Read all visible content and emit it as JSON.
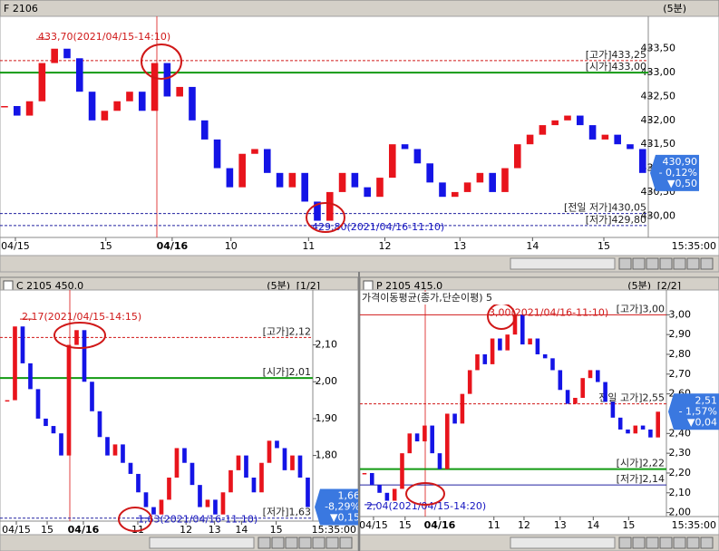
{
  "chart_data": [
    {
      "type": "candlestick",
      "title": "F 2106",
      "period": "(5분)",
      "end_label": "15:35:00",
      "up_color": "#e8141c",
      "down_color": "#1414e6",
      "values": [
        432.3,
        432.1,
        432.4,
        433.2,
        433.5,
        433.3,
        432.6,
        432.0,
        432.2,
        432.4,
        432.6,
        432.2,
        433.2,
        432.5,
        432.7,
        432.0,
        431.6,
        431.0,
        430.6,
        431.3,
        431.4,
        430.9,
        430.6,
        430.9,
        430.3,
        429.9,
        430.5,
        430.9,
        430.6,
        430.4,
        430.8,
        431.5,
        431.4,
        431.1,
        430.7,
        430.4,
        430.5,
        430.7,
        430.9,
        430.5,
        431.0,
        431.5,
        431.7,
        431.9,
        432.0,
        432.1,
        431.9,
        431.6,
        431.7,
        431.5,
        431.4,
        430.9
      ],
      "xlim": [
        -0.36,
        51.45
      ],
      "ylim": [
        429.55,
        434.14
      ],
      "xticks": [
        {
          "value": 0.87,
          "label": "04/15"
        },
        {
          "value": 8.1,
          "label": "15"
        },
        {
          "value": 13.4,
          "label": "04/16"
        },
        {
          "value": 18.1,
          "label": "10"
        },
        {
          "value": 24.3,
          "label": "11"
        },
        {
          "value": 30.4,
          "label": "12"
        },
        {
          "value": 36.4,
          "label": "13"
        },
        {
          "value": 42.2,
          "label": "14"
        },
        {
          "value": 47.9,
          "label": "15"
        }
      ],
      "yticks": [
        {
          "value": 433.5,
          "label": "433,50"
        },
        {
          "value": 433,
          "label": "433,00"
        },
        {
          "value": 432.5,
          "label": "432,50"
        },
        {
          "value": 432,
          "label": "432,00"
        },
        {
          "value": 431.5,
          "label": "431,50"
        },
        {
          "value": 431,
          "label": "431,00"
        },
        {
          "value": 430.5,
          "label": "430,50"
        },
        {
          "value": 430,
          "label": "430,00"
        }
      ],
      "levels": [
        {
          "label": "[고가]433,25",
          "value": 433.25,
          "color": "#d01818",
          "style": "dashed"
        },
        {
          "label": "[시가]433,00",
          "value": 433,
          "color": "#139a13",
          "style": "solid"
        },
        {
          "label": "[전일 저가]430,05",
          "value": 430.05,
          "color": "#2020a0",
          "style": "dashed"
        },
        {
          "label": "[저가]429,80",
          "value": 429.8,
          "color": "#2020a0",
          "style": "dashed"
        }
      ],
      "annotations": [
        {
          "text": "433,70(2021/04/15-14:10)",
          "value": 433.7,
          "color": "#d01818"
        },
        {
          "text": "429,80(2021/04/16-11:10)",
          "value": 429.8,
          "color": "#1414c0"
        }
      ],
      "last": {
        "value": 430.9,
        "label": "430,90",
        "change": "- 0,12%",
        "diff": "▼0,50"
      }
    },
    {
      "type": "candlestick",
      "title": "C 2105 450.0",
      "period": "(5분)",
      "page": "[1/2]",
      "end_label": "15:35:00",
      "up_color": "#e8141c",
      "down_color": "#1414e6",
      "values": [
        1.95,
        2.15,
        2.05,
        1.98,
        1.9,
        1.88,
        1.86,
        1.8,
        2.1,
        2.14,
        2.0,
        1.92,
        1.85,
        1.8,
        1.83,
        1.78,
        1.75,
        1.7,
        1.66,
        1.64,
        1.68,
        1.74,
        1.82,
        1.78,
        1.72,
        1.66,
        1.68,
        1.64,
        1.7,
        1.76,
        1.8,
        1.74,
        1.7,
        1.78,
        1.84,
        1.82,
        1.76,
        1.8,
        1.74,
        1.66
      ],
      "xlim": [
        -0.94,
        39.65
      ],
      "ylim": [
        1.622,
        2.244
      ],
      "xticks": [
        {
          "value": 1.18,
          "label": "04/15"
        },
        {
          "value": 5.18,
          "label": "15"
        },
        {
          "value": 9.88,
          "label": "04/16"
        },
        {
          "value": 16.94,
          "label": "11"
        },
        {
          "value": 23.2,
          "label": "12"
        },
        {
          "value": 26.9,
          "label": "13"
        },
        {
          "value": 30.4,
          "label": "14"
        },
        {
          "value": 34.9,
          "label": "15"
        }
      ],
      "yticks": [
        {
          "value": 2.1,
          "label": "2,10"
        },
        {
          "value": 2.0,
          "label": "2,00"
        },
        {
          "value": 1.9,
          "label": "1,90"
        },
        {
          "value": 1.8,
          "label": "1,80"
        }
      ],
      "levels": [
        {
          "label": "[고가]2,12",
          "value": 2.12,
          "color": "#d01818",
          "style": "dashed"
        },
        {
          "label": "[시가]2,01",
          "value": 2.01,
          "color": "#139a13",
          "style": "solid"
        },
        {
          "label": "[저가]1,63",
          "value": 1.63,
          "color": "#2020a0",
          "style": "dashed"
        }
      ],
      "annotations": [
        {
          "text": "2,17(2021/04/15-14:15)",
          "value": 2.17,
          "color": "#d01818"
        },
        {
          "text": "1,63(2021/04/16-11:10)",
          "value": 1.63,
          "color": "#1414c0"
        }
      ],
      "last": {
        "value": 1.66,
        "label": "1,66",
        "change": "-8,29%",
        "diff": "▼0,15"
      }
    },
    {
      "type": "candlestick",
      "title": "P 2105 415.0",
      "period": "(5분)",
      "page": "[2/2]",
      "subtitle": "가격이동평균(종가,단순이평) 5",
      "end_label": "15:35:00",
      "up_color": "#e8141c",
      "down_color": "#1414e6",
      "values": [
        2.2,
        2.14,
        2.1,
        2.06,
        2.12,
        2.3,
        2.4,
        2.36,
        2.44,
        2.3,
        2.22,
        2.5,
        2.45,
        2.6,
        2.72,
        2.8,
        2.75,
        2.88,
        2.82,
        2.9,
        3.0,
        2.85,
        2.88,
        2.8,
        2.78,
        2.72,
        2.62,
        2.55,
        2.58,
        2.68,
        2.72,
        2.66,
        2.56,
        2.48,
        2.42,
        2.4,
        2.44,
        2.42,
        2.38,
        2.51
      ],
      "xlim": [
        -0.6,
        40.12
      ],
      "ylim": [
        1.98,
        3.116
      ],
      "xticks": [
        {
          "value": 1.2,
          "label": "04/15"
        },
        {
          "value": 5.4,
          "label": "15"
        },
        {
          "value": 10,
          "label": "04/16"
        },
        {
          "value": 17.2,
          "label": "11"
        },
        {
          "value": 21.2,
          "label": "12"
        },
        {
          "value": 26,
          "label": "13"
        },
        {
          "value": 30.4,
          "label": "14"
        },
        {
          "value": 35.1,
          "label": "15"
        }
      ],
      "yticks": [
        {
          "value": 3.0,
          "label": "3,00"
        },
        {
          "value": 2.9,
          "label": "2,90"
        },
        {
          "value": 2.8,
          "label": "2,80"
        },
        {
          "value": 2.7,
          "label": "2,70"
        },
        {
          "value": 2.6,
          "label": "2,60"
        },
        {
          "value": 2.4,
          "label": "2,40"
        },
        {
          "value": 2.3,
          "label": "2,30"
        },
        {
          "value": 2.2,
          "label": "2,20"
        },
        {
          "value": 2.1,
          "label": "2,10"
        },
        {
          "value": 2.0,
          "label": "2,00"
        }
      ],
      "levels": [
        {
          "label": "[고가]3,00",
          "value": 3.0,
          "color": "#d01818",
          "style": "solid"
        },
        {
          "label": "전일 고가]2,55",
          "value": 2.55,
          "color": "#d01818",
          "style": "dashed"
        },
        {
          "label": "[시가]2,22",
          "value": 2.22,
          "color": "#139a13",
          "style": "solid"
        },
        {
          "label": "[저가]2,14",
          "value": 2.14,
          "color": "#2020a0",
          "style": "solid"
        }
      ],
      "annotations": [
        {
          "text": "3,00(2021/04/16-11:10)",
          "value": 3.0,
          "color": "#d01818"
        },
        {
          "text": "2,04(2021/04/15-14:20)",
          "value": 2.04,
          "color": "#1414c0"
        }
      ],
      "last": {
        "value": 2.51,
        "label": "2,51",
        "change": "- 1,57%",
        "diff": "▼0,04"
      }
    }
  ]
}
